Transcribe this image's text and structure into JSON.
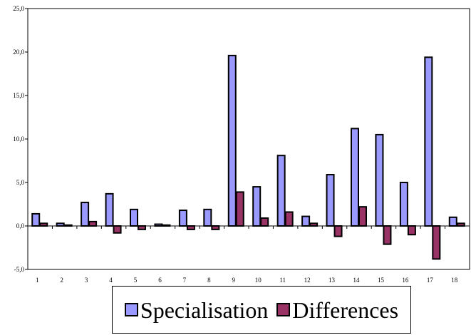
{
  "chart_data": {
    "type": "bar",
    "title": "",
    "xlabel": "",
    "ylabel": "",
    "categories": [
      "1",
      "2",
      "3",
      "4",
      "5",
      "6",
      "7",
      "8",
      "9",
      "10",
      "11",
      "12",
      "13",
      "14",
      "15",
      "16",
      "17",
      "18"
    ],
    "series": [
      {
        "name": "Specialisation",
        "color": "#9999ff",
        "values": [
          1.4,
          0.3,
          2.7,
          3.7,
          1.9,
          0.2,
          1.8,
          1.9,
          19.6,
          4.5,
          8.1,
          1.1,
          5.9,
          11.2,
          10.5,
          5.0,
          19.4,
          1.0
        ]
      },
      {
        "name": "Differences",
        "color": "#993366",
        "values": [
          0.3,
          0.1,
          0.5,
          -0.8,
          -0.4,
          0.1,
          -0.4,
          -0.4,
          3.9,
          0.9,
          1.6,
          0.3,
          -1.2,
          2.2,
          -2.1,
          -1.0,
          -3.8,
          0.3
        ]
      }
    ],
    "ylim": [
      -5,
      25
    ],
    "yticks": [
      -5,
      0,
      5,
      10,
      15,
      20,
      25
    ],
    "ytick_labels": [
      "-5,0",
      "0,0",
      "5,0",
      "10,0",
      "15,0",
      "20,0",
      "25,0"
    ],
    "grid": false,
    "legend_position": "bottom"
  }
}
